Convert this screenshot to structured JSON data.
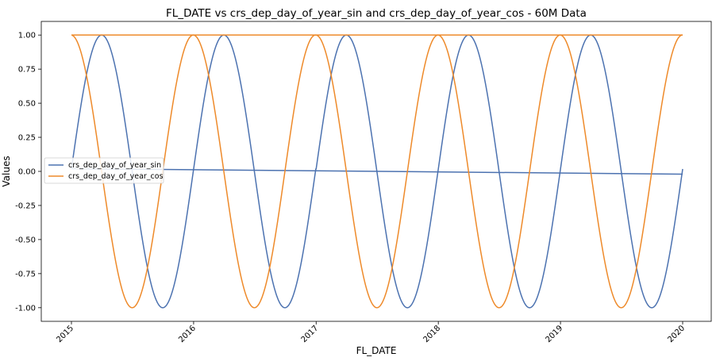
{
  "chart_data": {
    "type": "line",
    "title": "FL_DATE vs crs_dep_day_of_year_sin and crs_dep_day_of_year_cos - 60M Data",
    "xlabel": "FL_DATE",
    "ylabel": "Values",
    "x_range": [
      "2015-01-01",
      "2020-01-01"
    ],
    "x_ticks": [
      "2015",
      "2016",
      "2017",
      "2018",
      "2019",
      "2020"
    ],
    "ylim": [
      -1.1,
      1.1
    ],
    "y_ticks": [
      "1.00",
      "0.75",
      "0.50",
      "0.25",
      "0.00",
      "-0.25",
      "-0.50",
      "-0.75",
      "-1.00"
    ],
    "grid": false,
    "legend_position": "center-left",
    "series": [
      {
        "name": "crs_dep_day_of_year_sin",
        "color": "#4c72b0",
        "function": "sin(2*pi*day_of_year/365)",
        "x": [
          "2015-01-01",
          "2015-04-01",
          "2015-07-01",
          "2015-10-01",
          "2016-01-01",
          "2016-04-01",
          "2016-07-01",
          "2016-10-01",
          "2017-01-01",
          "2017-04-01",
          "2017-07-01",
          "2017-10-01",
          "2018-01-01",
          "2018-04-01",
          "2018-07-01",
          "2018-10-01",
          "2019-01-01",
          "2019-04-01",
          "2019-07-01",
          "2019-10-01",
          "2020-01-01"
        ],
        "values": [
          0.02,
          1.0,
          0.0,
          -1.0,
          0.02,
          1.0,
          0.0,
          -1.0,
          0.02,
          1.0,
          0.0,
          -1.0,
          0.02,
          1.0,
          0.0,
          -1.0,
          0.02,
          1.0,
          0.0,
          -1.0,
          -0.02
        ]
      },
      {
        "name": "crs_dep_day_of_year_cos",
        "color": "#ee8a2a",
        "function": "cos(2*pi*day_of_year/365)",
        "x": [
          "2015-01-01",
          "2015-04-01",
          "2015-07-01",
          "2015-10-01",
          "2016-01-01",
          "2016-04-01",
          "2016-07-01",
          "2016-10-01",
          "2017-01-01",
          "2017-04-01",
          "2017-07-01",
          "2017-10-01",
          "2018-01-01",
          "2018-04-01",
          "2018-07-01",
          "2018-10-01",
          "2019-01-01",
          "2019-04-01",
          "2019-07-01",
          "2019-10-01",
          "2020-01-01"
        ],
        "values": [
          1.0,
          0.0,
          -1.0,
          0.0,
          1.0,
          0.0,
          -1.0,
          0.0,
          1.0,
          0.0,
          -1.0,
          0.0,
          1.0,
          0.0,
          -1.0,
          0.0,
          1.0,
          0.0,
          -1.0,
          0.0,
          1.0
        ]
      }
    ]
  }
}
